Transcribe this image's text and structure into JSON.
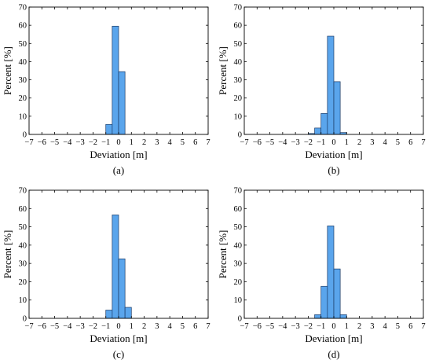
{
  "chart_data": [
    {
      "type": "bar",
      "panel_label": "(a)",
      "xlabel": "Deviation [m]",
      "ylabel": "Percent [%]",
      "xlim": [
        -7,
        7
      ],
      "ylim": [
        0,
        70
      ],
      "xticks": [
        -7,
        -6,
        -5,
        -4,
        -3,
        -2,
        -1,
        0,
        1,
        2,
        3,
        4,
        5,
        6,
        7
      ],
      "yticks": [
        0,
        10,
        20,
        30,
        40,
        50,
        60,
        70
      ],
      "bin_width": 0.5,
      "bins": [
        {
          "x0": -1.0,
          "x1": -0.5,
          "value": 5.5
        },
        {
          "x0": -0.5,
          "x1": 0.0,
          "value": 59.5
        },
        {
          "x0": 0.0,
          "x1": 0.5,
          "value": 34.5
        }
      ]
    },
    {
      "type": "bar",
      "panel_label": "(b)",
      "xlabel": "Deviation [m]",
      "ylabel": "Percent [%]",
      "xlim": [
        -7,
        7
      ],
      "ylim": [
        0,
        70
      ],
      "xticks": [
        -7,
        -6,
        -5,
        -4,
        -3,
        -2,
        -1,
        0,
        1,
        2,
        3,
        4,
        5,
        6,
        7
      ],
      "yticks": [
        0,
        10,
        20,
        30,
        40,
        50,
        60,
        70
      ],
      "bin_width": 0.5,
      "bins": [
        {
          "x0": -2.0,
          "x1": -1.5,
          "value": 0.5
        },
        {
          "x0": -1.5,
          "x1": -1.0,
          "value": 3.5
        },
        {
          "x0": -1.0,
          "x1": -0.5,
          "value": 11.5
        },
        {
          "x0": -0.5,
          "x1": 0.0,
          "value": 54
        },
        {
          "x0": 0.0,
          "x1": 0.5,
          "value": 29
        },
        {
          "x0": 0.5,
          "x1": 1.0,
          "value": 1
        }
      ]
    },
    {
      "type": "bar",
      "panel_label": "(c)",
      "xlabel": "Deviation [m]",
      "ylabel": "Percent [%]",
      "xlim": [
        -7,
        7
      ],
      "ylim": [
        0,
        70
      ],
      "xticks": [
        -7,
        -6,
        -5,
        -4,
        -3,
        -2,
        -1,
        0,
        1,
        2,
        3,
        4,
        5,
        6,
        7
      ],
      "yticks": [
        0,
        10,
        20,
        30,
        40,
        50,
        60,
        70
      ],
      "bin_width": 0.5,
      "bins": [
        {
          "x0": -1.0,
          "x1": -0.5,
          "value": 4.5
        },
        {
          "x0": -0.5,
          "x1": 0.0,
          "value": 56.5
        },
        {
          "x0": 0.0,
          "x1": 0.5,
          "value": 32.5
        },
        {
          "x0": 0.5,
          "x1": 1.0,
          "value": 6
        }
      ]
    },
    {
      "type": "bar",
      "panel_label": "(d)",
      "xlabel": "Deviation [m]",
      "ylabel": "Percent [%]",
      "xlim": [
        -7,
        7
      ],
      "ylim": [
        0,
        70
      ],
      "xticks": [
        -7,
        -6,
        -5,
        -4,
        -3,
        -2,
        -1,
        0,
        1,
        2,
        3,
        4,
        5,
        6,
        7
      ],
      "yticks": [
        0,
        10,
        20,
        30,
        40,
        50,
        60,
        70
      ],
      "bin_width": 0.5,
      "bins": [
        {
          "x0": -1.5,
          "x1": -1.0,
          "value": 2
        },
        {
          "x0": -1.0,
          "x1": -0.5,
          "value": 17.5
        },
        {
          "x0": -0.5,
          "x1": 0.0,
          "value": 50.5
        },
        {
          "x0": 0.0,
          "x1": 0.5,
          "value": 27
        },
        {
          "x0": 0.5,
          "x1": 1.0,
          "value": 2
        }
      ]
    }
  ]
}
